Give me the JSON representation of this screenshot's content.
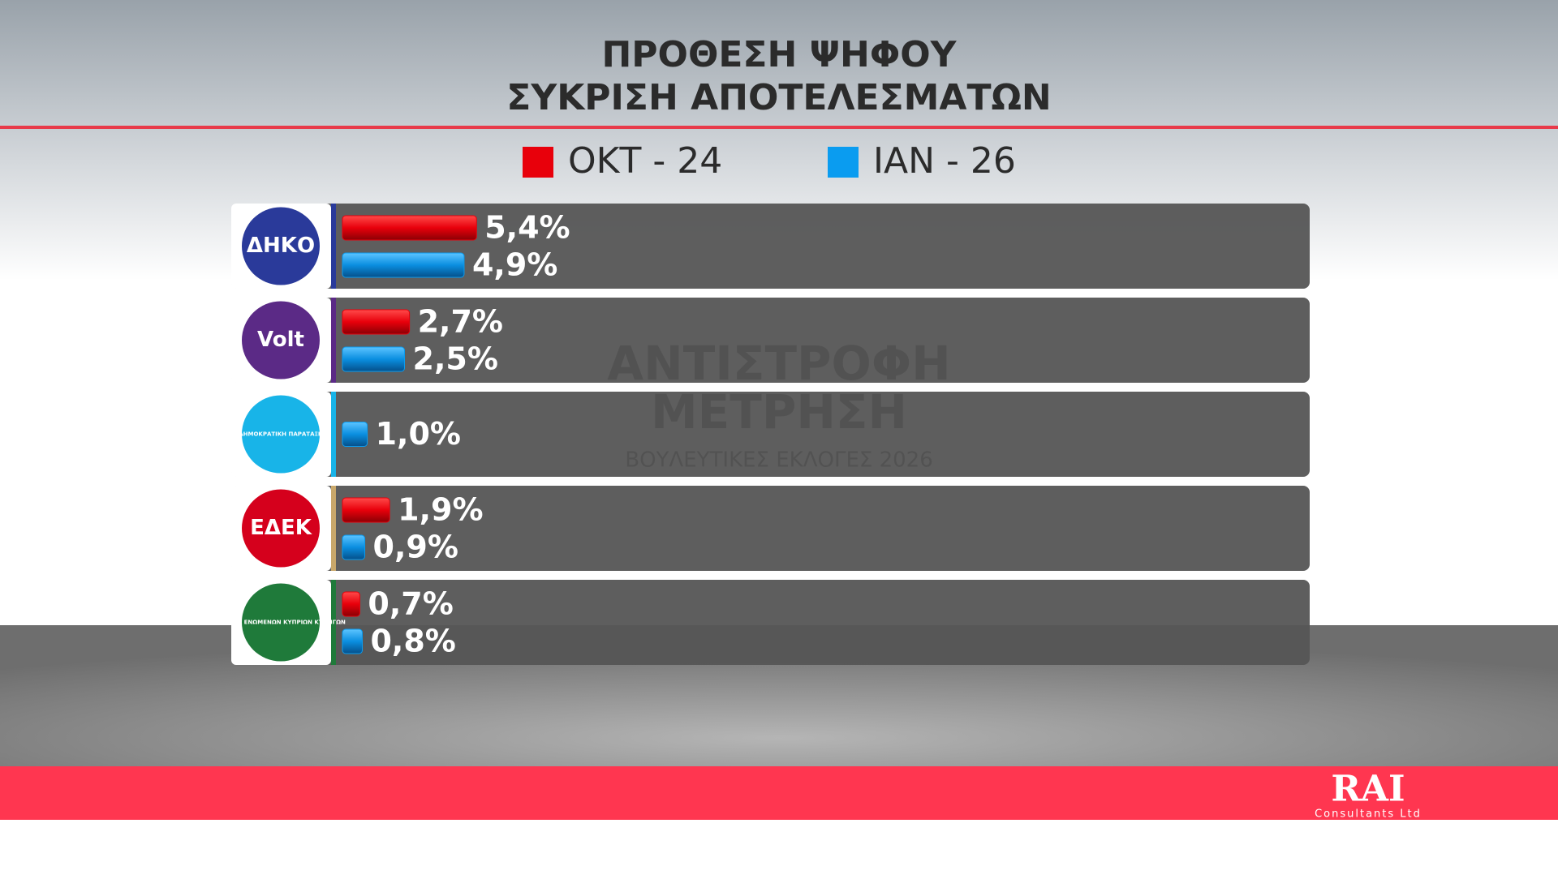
{
  "chart_data": {
    "type": "bar",
    "orientation": "horizontal",
    "title": "ΠΡΟΘΕΣΗ ΨΗΦΟΥ",
    "subtitle": "ΣΥΚΡΙΣΗ ΑΠΟΤΕΛΕΣΜΑΤΩΝ",
    "categories": [
      "ΔΗΚΟ",
      "Volt",
      "ΔΗΜΟΚΡΑΤΙΚΗ ΠΑΡΑΤΑΞΗ",
      "ΕΔΕΚ",
      "ΚΙΝΗΜΑ ΕΝΩΜΕΝΩΝ ΚΥΠΡΙΩΝ ΚΥΝΗΓΩΝ"
    ],
    "series": [
      {
        "name": "ΟΚΤ - 24",
        "color": "#e8000b",
        "values": [
          5.4,
          2.7,
          null,
          1.9,
          0.7
        ],
        "value_labels": [
          "5,4%",
          "2,7%",
          null,
          "1,9%",
          "0,7%"
        ]
      },
      {
        "name": "ΙΑΝ - 26",
        "color": "#0a9cf0",
        "values": [
          4.9,
          2.5,
          1.0,
          0.9,
          0.8
        ],
        "value_labels": [
          "4,9%",
          "2,5%",
          "1,0%",
          "0,9%",
          "0,8%"
        ]
      }
    ],
    "watermark": {
      "line1": "ΑΝΤΙΣΤΡΟΦΗ",
      "line2": "ΜΕΤΡΗΣΗ",
      "line3": "ΒΟΥΛΕΥΤΙΚΕΣ ΕΚΛΟΓΕΣ 2026"
    },
    "brand": {
      "name": "RAI",
      "sub": "Consultants Ltd"
    }
  }
}
